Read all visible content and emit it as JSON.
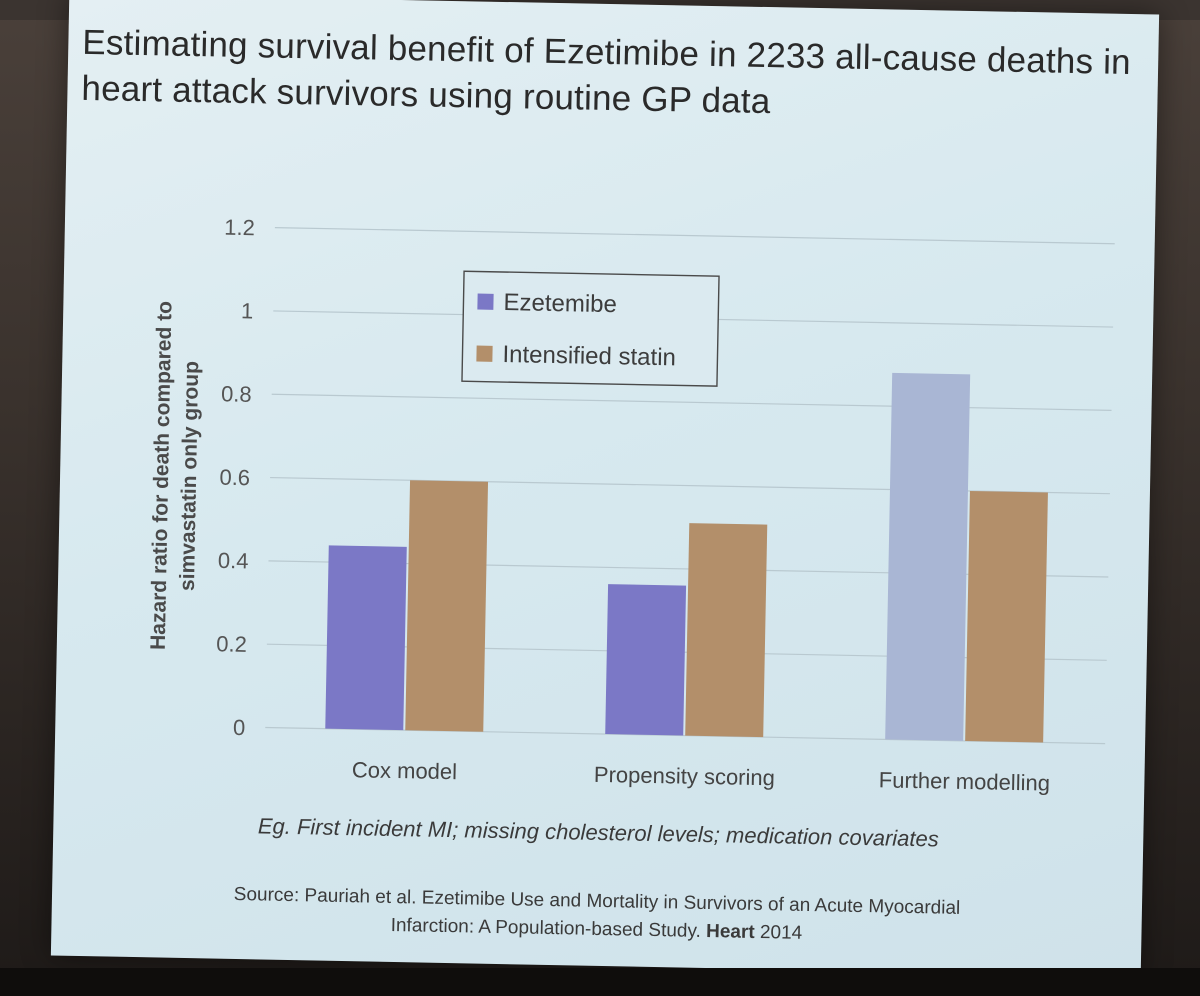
{
  "slide": {
    "title_line1": "Estimating survival benefit of Ezetimibe in 2233 all-cause deaths in",
    "title_line2": "heart attack survivors using routine GP data",
    "note": "Eg. First incident MI; missing cholesterol levels; medication covariates",
    "source_prefix": "Source: Pauriah et al. Ezetimibe Use and Mortality in Survivors of an Acute Myocardial",
    "source_line2_start": "Infarction: A Population-based Study.",
    "source_journal": "Heart",
    "source_year": "2014"
  },
  "chart_data": {
    "type": "bar",
    "title": "Estimating survival benefit of Ezetimibe in 2233 all-cause deaths in heart attack survivors using routine GP data",
    "ylabel_line1": "Hazard ratio for death compared to",
    "ylabel_line2": "simvastatin only group",
    "xlabel": "",
    "ylim": [
      0,
      1.2
    ],
    "yticks": [
      0,
      0.2,
      0.4,
      0.6,
      0.8,
      1,
      1.2
    ],
    "ytick_labels": [
      "0",
      "0.2",
      "0.4",
      "0.6",
      "0.8",
      "1",
      "1.2"
    ],
    "grid": true,
    "legend_position": "top-left",
    "categories": [
      "Cox model",
      "Propensity scoring",
      "Further modelling"
    ],
    "series": [
      {
        "name": "Ezetemibe",
        "values": [
          0.44,
          0.36,
          0.88
        ],
        "color": "#7b78c6",
        "highlight_color": "#a9b6d4"
      },
      {
        "name": "Intensified statin",
        "values": [
          0.6,
          0.51,
          0.6
        ],
        "color": "#b38f6a"
      }
    ],
    "highlight_index": 2
  }
}
